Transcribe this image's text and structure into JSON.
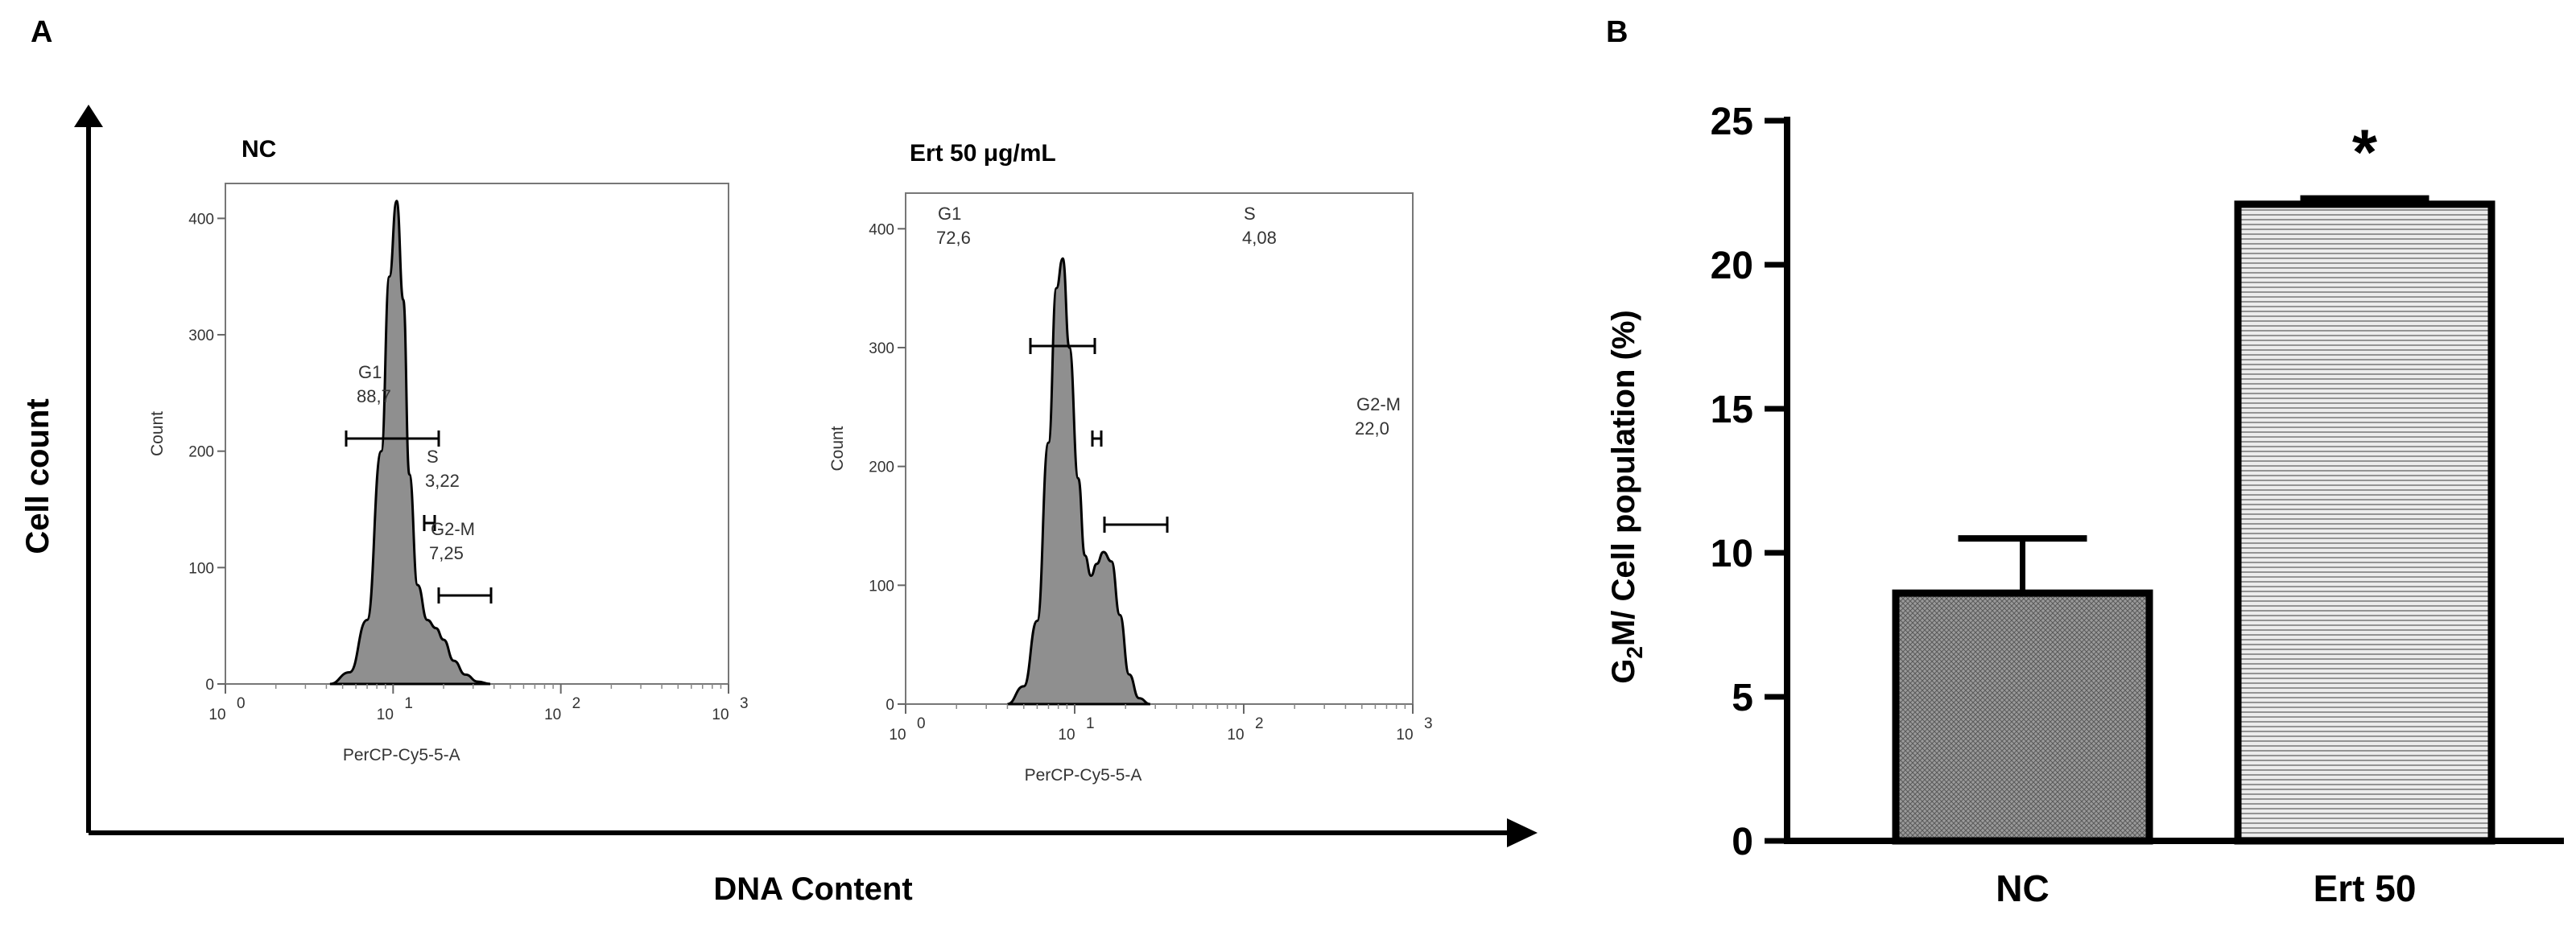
{
  "colors": {
    "hist_fill": "#8f8f8f",
    "outline": "#000000",
    "nc_bar_fill": "#9a9a9a",
    "ert_bar_fill": "#d6d6d6"
  },
  "panel_a": {
    "letter": "A",
    "y_axis_label": "Cell count",
    "x_axis_label": "DNA Content",
    "histograms": [
      {
        "title": "NC",
        "y_label": "Count",
        "x_label": "PerCP-Cy5-5-A",
        "y_ticks": [
          "0",
          "100",
          "200",
          "300",
          "400"
        ],
        "x_ticks": [
          "10",
          "10",
          "10",
          "10"
        ],
        "x_exps": [
          "0",
          "1",
          "2",
          "3"
        ],
        "gates": [
          {
            "name": "G1",
            "value": "88,7"
          },
          {
            "name": "S",
            "value": "3,22"
          },
          {
            "name": "G2-M",
            "value": "7,25"
          }
        ]
      },
      {
        "title": "Ert 50 μg/mL",
        "y_label": "Count",
        "x_label": "PerCP-Cy5-5-A",
        "y_ticks": [
          "0",
          "100",
          "200",
          "300",
          "400"
        ],
        "x_ticks": [
          "10",
          "10",
          "10",
          "10"
        ],
        "x_exps": [
          "0",
          "1",
          "2",
          "3"
        ],
        "gates": [
          {
            "name": "G1",
            "value": "72,6"
          },
          {
            "name": "S",
            "value": "4,08"
          },
          {
            "name": "G2-M",
            "value": "22,0"
          }
        ]
      }
    ]
  },
  "chart_data": [
    {
      "type": "area",
      "title": "NC",
      "xlabel": "PerCP-Cy5-5-A",
      "ylabel": "Count",
      "x_scale": "log",
      "xlim": [
        1,
        1000
      ],
      "ylim": [
        0,
        430
      ],
      "x": [
        4.2,
        5.5,
        7,
        8.5,
        9.5,
        10.5,
        11.5,
        12.5,
        14,
        16,
        18,
        20,
        23,
        27,
        32,
        38
      ],
      "y": [
        0,
        10,
        55,
        200,
        350,
        415,
        330,
        180,
        85,
        55,
        48,
        38,
        20,
        8,
        2,
        0
      ]
    },
    {
      "type": "area",
      "title": "Ert 50 μg/mL",
      "xlabel": "PerCP-Cy5-5-A",
      "ylabel": "Count",
      "x_scale": "log",
      "xlim": [
        1,
        1000
      ],
      "ylim": [
        0,
        430
      ],
      "x": [
        4,
        5,
        6,
        7,
        7.8,
        8.5,
        9.3,
        10.5,
        11.5,
        12.5,
        13.5,
        14.8,
        16.5,
        18.5,
        21,
        24,
        28
      ],
      "y": [
        0,
        15,
        70,
        220,
        350,
        375,
        300,
        190,
        125,
        108,
        118,
        128,
        120,
        75,
        25,
        5,
        0
      ]
    },
    {
      "type": "bar",
      "panel": "B",
      "categories": [
        "NC",
        "Ert 50"
      ],
      "values": [
        8.6,
        22.1
      ],
      "errors": [
        1.9,
        0.2
      ],
      "ylabel_main": "G",
      "ylabel_sub": "2",
      "ylabel_rest": "M/ Cell population (%)",
      "ylim": [
        0,
        25
      ],
      "y_ticks": [
        "0",
        "5",
        "10",
        "15",
        "20",
        "25"
      ],
      "annotation": "*"
    }
  ],
  "panel_b": {
    "letter": "B"
  }
}
